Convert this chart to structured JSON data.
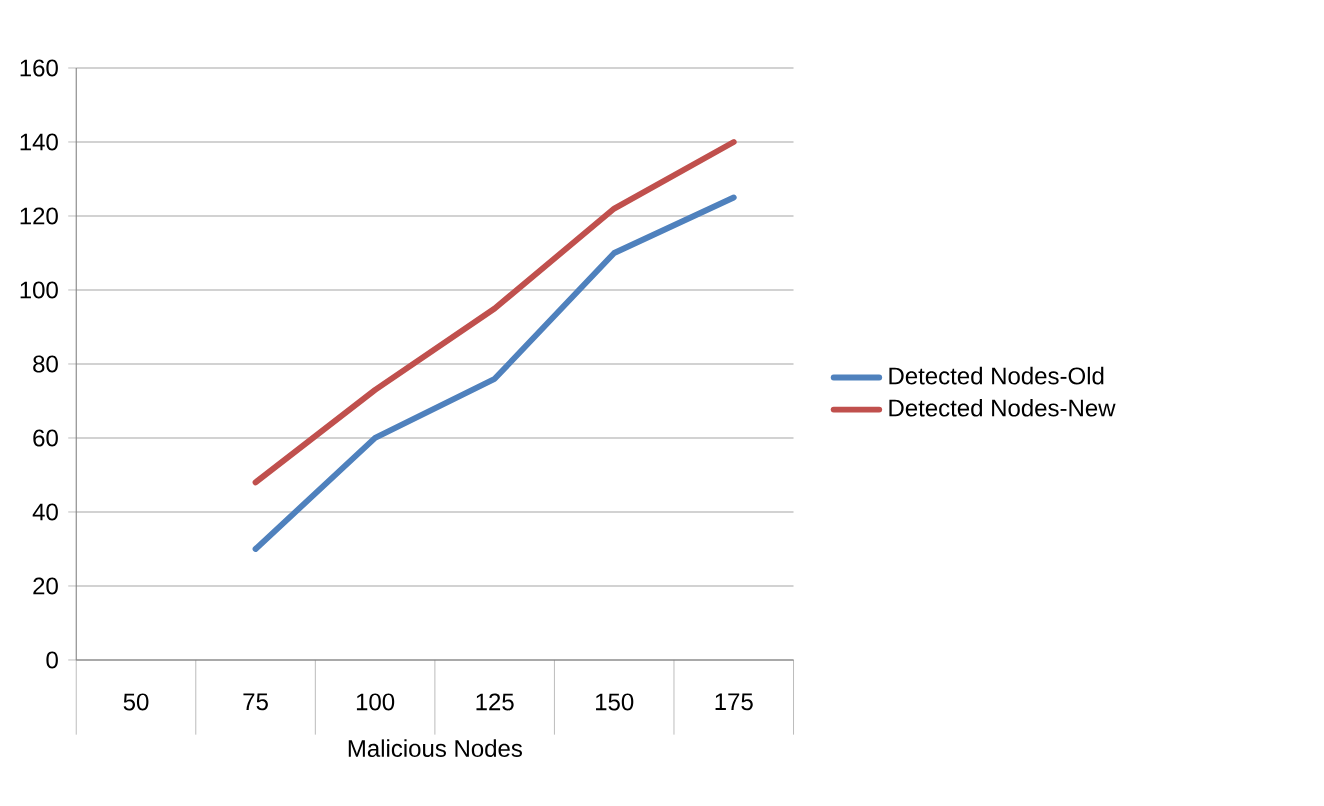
{
  "chart_data": {
    "type": "line",
    "xlabel": "Malicious Nodes",
    "categories": [
      "50",
      "75",
      "100",
      "125",
      "150",
      "175"
    ],
    "series": [
      {
        "name": "Detected Nodes-Old",
        "color": "#4f81bd",
        "values": [
          null,
          30,
          60,
          76,
          110,
          125
        ]
      },
      {
        "name": "Detected Nodes-New",
        "color": "#c0504d",
        "values": [
          null,
          48,
          73,
          95,
          122,
          140
        ]
      }
    ],
    "ylim": [
      0,
      160
    ],
    "yticks": [
      0,
      20,
      40,
      60,
      80,
      100,
      120,
      140,
      160
    ],
    "grid": "y",
    "legend": "right",
    "marker": "none",
    "line_style": "solid"
  }
}
